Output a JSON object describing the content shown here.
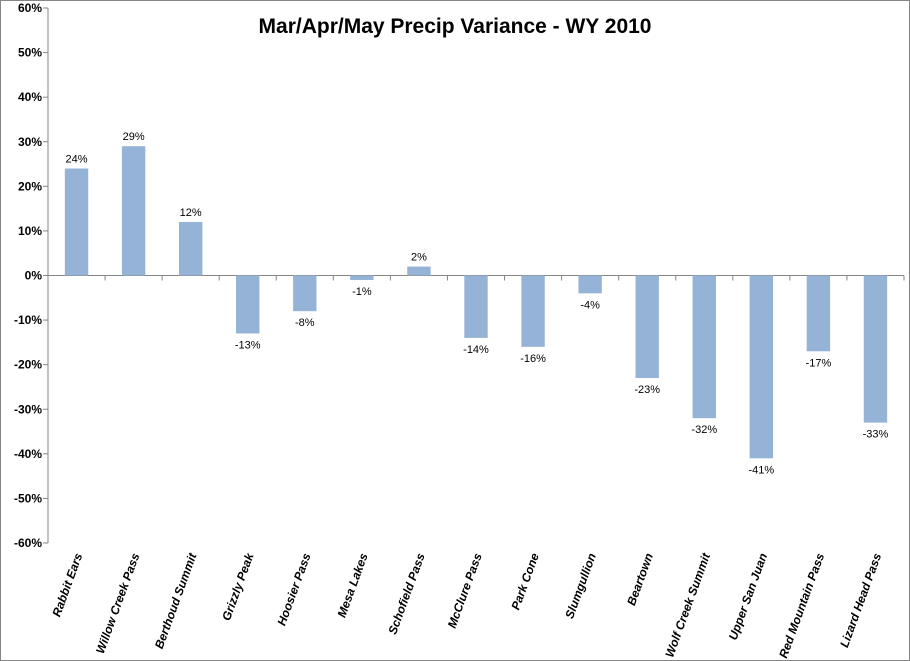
{
  "chart_data": {
    "type": "bar",
    "title": "Mar/Apr/May Precip Variance - WY 2010",
    "xlabel": "",
    "ylabel": "",
    "ylim": [
      -60,
      60
    ],
    "yticks": [
      60,
      50,
      40,
      30,
      20,
      10,
      0,
      -10,
      -20,
      -30,
      -40,
      -50,
      -60
    ],
    "ytick_labels": [
      "60%",
      "50%",
      "40%",
      "30%",
      "20%",
      "10%",
      "0%",
      "-10%",
      "-20%",
      "-30%",
      "-40%",
      "-50%",
      "-60%"
    ],
    "grid": false,
    "legend": "none",
    "bar_color": "#95b3d7",
    "categories": [
      "Rabbit Ears",
      "Willow Creek Pass",
      "Berthoud Summit",
      "Grizzly Peak",
      "Hoosier Pass",
      "Mesa Lakes",
      "Schofield Pass",
      "McClure Pass",
      "Park Cone",
      "Slumgullion",
      "Beartown",
      "Wolf Creek Summit",
      "Upper San Juan",
      "Red Mountain Pass",
      "Lizard Head Pass"
    ],
    "values": [
      24,
      29,
      12,
      -13,
      -8,
      -1,
      2,
      -14,
      -16,
      -4,
      -23,
      -32,
      -41,
      -17,
      -33
    ],
    "data_labels": [
      "24%",
      "29%",
      "12%",
      "-13%",
      "-8%",
      "-1%",
      "2%",
      "-14%",
      "-16%",
      "-4%",
      "-23%",
      "-32%",
      "-41%",
      "-17%",
      "-33%"
    ]
  }
}
